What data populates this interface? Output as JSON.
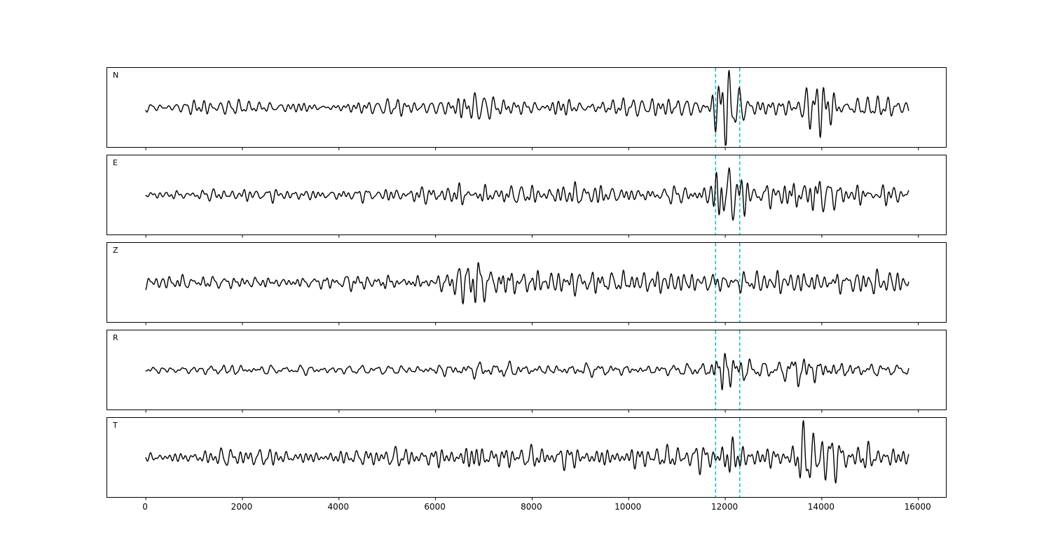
{
  "chart_data": {
    "type": "line",
    "title": "",
    "xlabel": "",
    "ylabel": "",
    "grid": false,
    "background_color": "#ffffff",
    "trace_color": "#000000",
    "xlim": [
      -800,
      16570
    ],
    "x_start": 0,
    "x_end": 15800,
    "xticks": [
      0,
      2000,
      4000,
      6000,
      8000,
      10000,
      12000,
      14000,
      16000
    ],
    "vlines": {
      "x": [
        11800,
        12300
      ],
      "color": "#17becf",
      "style": "dashed"
    },
    "panels": [
      {
        "label": "N",
        "seed": 11,
        "envelope": [
          [
            0,
            4
          ],
          [
            600,
            6
          ],
          [
            1400,
            9
          ],
          [
            2200,
            8
          ],
          [
            3200,
            7
          ],
          [
            4200,
            8
          ],
          [
            5200,
            8
          ],
          [
            6200,
            9
          ],
          [
            6600,
            14
          ],
          [
            6900,
            16
          ],
          [
            7300,
            11
          ],
          [
            8200,
            10
          ],
          [
            9200,
            11
          ],
          [
            10200,
            10
          ],
          [
            11200,
            11
          ],
          [
            11650,
            12
          ],
          [
            11900,
            46
          ],
          [
            12150,
            28
          ],
          [
            12500,
            12
          ],
          [
            13000,
            11
          ],
          [
            13400,
            15
          ],
          [
            13650,
            36
          ],
          [
            13950,
            28
          ],
          [
            14400,
            18
          ],
          [
            15000,
            13
          ],
          [
            15800,
            10
          ]
        ]
      },
      {
        "label": "E",
        "seed": 22,
        "envelope": [
          [
            0,
            5
          ],
          [
            800,
            6
          ],
          [
            1800,
            7
          ],
          [
            2800,
            6
          ],
          [
            3800,
            7
          ],
          [
            4800,
            7
          ],
          [
            5800,
            8
          ],
          [
            6400,
            11
          ],
          [
            6700,
            16
          ],
          [
            7100,
            12
          ],
          [
            8000,
            10
          ],
          [
            9000,
            12
          ],
          [
            10000,
            9
          ],
          [
            11000,
            9
          ],
          [
            11650,
            11
          ],
          [
            11950,
            48
          ],
          [
            12250,
            24
          ],
          [
            12600,
            14
          ],
          [
            13100,
            12
          ],
          [
            13500,
            30
          ],
          [
            13750,
            26
          ],
          [
            14100,
            16
          ],
          [
            14700,
            12
          ],
          [
            15800,
            9
          ]
        ]
      },
      {
        "label": "Z",
        "seed": 33,
        "envelope": [
          [
            0,
            8
          ],
          [
            900,
            9
          ],
          [
            1800,
            8
          ],
          [
            2800,
            7
          ],
          [
            3800,
            9
          ],
          [
            4800,
            11
          ],
          [
            5800,
            9
          ],
          [
            6350,
            12
          ],
          [
            6500,
            26
          ],
          [
            6620,
            50
          ],
          [
            6720,
            34
          ],
          [
            6900,
            26
          ],
          [
            7200,
            22
          ],
          [
            7600,
            18
          ],
          [
            8200,
            14
          ],
          [
            8800,
            13
          ],
          [
            9400,
            15
          ],
          [
            10200,
            12
          ],
          [
            11200,
            11
          ],
          [
            12200,
            11
          ],
          [
            13200,
            10
          ],
          [
            14000,
            12
          ],
          [
            14800,
            12
          ],
          [
            15800,
            9
          ]
        ]
      },
      {
        "label": "R",
        "seed": 44,
        "envelope": [
          [
            0,
            4
          ],
          [
            900,
            4
          ],
          [
            1800,
            7
          ],
          [
            2600,
            4
          ],
          [
            3600,
            5
          ],
          [
            4600,
            4
          ],
          [
            5600,
            5
          ],
          [
            6400,
            8
          ],
          [
            6800,
            9
          ],
          [
            7400,
            9
          ],
          [
            8200,
            6
          ],
          [
            9000,
            8
          ],
          [
            9600,
            7
          ],
          [
            10400,
            6
          ],
          [
            11200,
            7
          ],
          [
            11650,
            9
          ],
          [
            11950,
            42
          ],
          [
            12200,
            24
          ],
          [
            12600,
            10
          ],
          [
            13100,
            8
          ],
          [
            13500,
            23
          ],
          [
            13800,
            19
          ],
          [
            14300,
            12
          ],
          [
            15000,
            8
          ],
          [
            15800,
            5
          ]
        ]
      },
      {
        "label": "T",
        "seed": 55,
        "envelope": [
          [
            0,
            6
          ],
          [
            700,
            8
          ],
          [
            1500,
            11
          ],
          [
            2500,
            11
          ],
          [
            3500,
            9
          ],
          [
            4500,
            11
          ],
          [
            5500,
            12
          ],
          [
            6400,
            14
          ],
          [
            6800,
            22
          ],
          [
            7300,
            14
          ],
          [
            8200,
            13
          ],
          [
            9200,
            14
          ],
          [
            10200,
            15
          ],
          [
            11200,
            13
          ],
          [
            11750,
            16
          ],
          [
            12000,
            34
          ],
          [
            12350,
            20
          ],
          [
            12900,
            14
          ],
          [
            13350,
            16
          ],
          [
            13650,
            40
          ],
          [
            13950,
            28
          ],
          [
            14400,
            20
          ],
          [
            15000,
            16
          ],
          [
            15800,
            12
          ]
        ]
      }
    ]
  }
}
